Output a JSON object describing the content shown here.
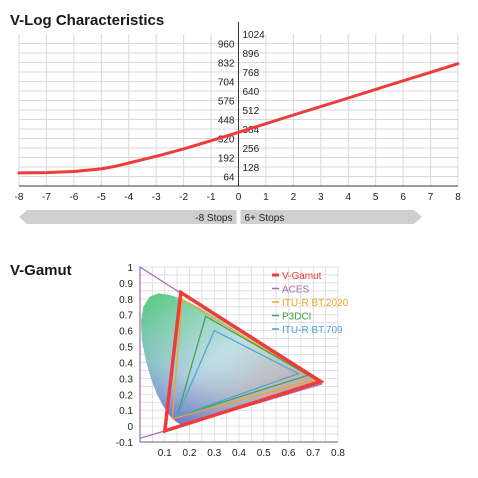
{
  "colors": {
    "curve": "#ee3b3b",
    "grid": "#d9d9d9",
    "stop_bar": "#cfcfcf"
  },
  "chart_data": [
    {
      "type": "line",
      "title": "V-Log Characteristics",
      "x_ticks": [
        "-8",
        "-7",
        "-6",
        "-5",
        "-4",
        "-3",
        "-2",
        "-1",
        "0",
        "1",
        "2",
        "3",
        "4",
        "5",
        "6",
        "7",
        "8"
      ],
      "xlim": [
        -8,
        8
      ],
      "y_left_ticks": [
        "960",
        "832",
        "704",
        "576",
        "448",
        "320",
        "192",
        "64"
      ],
      "y_right_ticks": [
        "1024",
        "896",
        "768",
        "640",
        "512",
        "384",
        "256",
        "128"
      ],
      "ylim": [
        0,
        1024
      ],
      "stop_labels": {
        "left": "-8 Stops",
        "right": "6+ Stops"
      },
      "grid": true,
      "series": [
        {
          "x": [
            -8,
            -7,
            -6,
            -5,
            -4.5,
            -4,
            -3,
            -2,
            -1,
            0,
            1,
            2,
            3,
            4,
            5,
            6,
            7,
            8
          ],
          "y": [
            88,
            90,
            98,
            115,
            132,
            155,
            200,
            250,
            305,
            362,
            420,
            478,
            535,
            593,
            651,
            709,
            766,
            824
          ]
        }
      ]
    },
    {
      "type": "scatter",
      "title": "V-Gamut",
      "x_ticks": [
        "0.1",
        "0.2",
        "0.3",
        "0.4",
        "0.5",
        "0.6",
        "0.7",
        "0.8"
      ],
      "y_ticks": [
        "1",
        "0.9",
        "0.8",
        "0.7",
        "0.6",
        "0.5",
        "0.4",
        "0.3",
        "0.2",
        "0.1",
        "0",
        "-0.1"
      ],
      "xlim": [
        0,
        0.8
      ],
      "ylim": [
        -0.1,
        1.0
      ],
      "grid": true,
      "legend_position": "top-right",
      "series": [
        {
          "name": "V-Gamut",
          "color": "#ee3b3b",
          "points": [
            [
              0.73,
              0.28
            ],
            [
              0.165,
              0.84
            ],
            [
              0.1,
              -0.03
            ]
          ]
        },
        {
          "name": "ACES",
          "color": "#a368b0",
          "points": [
            [
              0.7347,
              0.2653
            ],
            [
              0.0,
              1.0
            ],
            [
              0.0001,
              -0.077
            ]
          ]
        },
        {
          "name": "ITU-R BT.2020",
          "color": "#f2a51d",
          "points": [
            [
              0.708,
              0.292
            ],
            [
              0.17,
              0.797
            ],
            [
              0.131,
              0.046
            ]
          ]
        },
        {
          "name": "P3DCI",
          "color": "#3aa34a",
          "points": [
            [
              0.68,
              0.32
            ],
            [
              0.265,
              0.69
            ],
            [
              0.15,
              0.06
            ]
          ]
        },
        {
          "name": "ITU-R BT.709",
          "color": "#4aa3d8",
          "points": [
            [
              0.64,
              0.33
            ],
            [
              0.3,
              0.6
            ],
            [
              0.15,
              0.06
            ]
          ]
        }
      ]
    }
  ]
}
